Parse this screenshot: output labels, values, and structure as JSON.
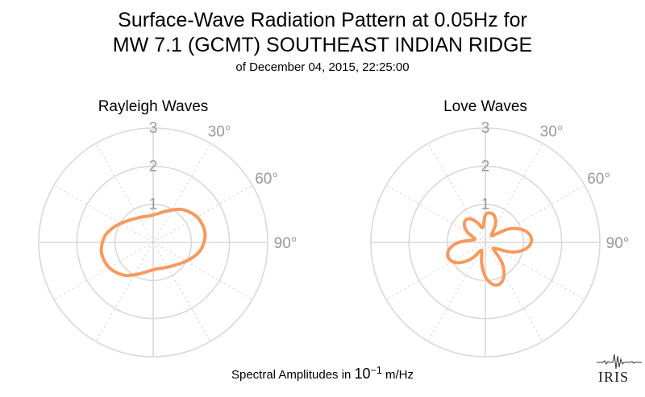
{
  "header": {
    "title_line1": "Surface-Wave Radiation Pattern at 0.05Hz for",
    "title_line2": "MW 7.1 (GCMT) SOUTHEAST INDIAN RIDGE",
    "subtitle": "of December 04, 2015, 22:25:00"
  },
  "footer": {
    "label_prefix": "Spectral Amplitudes in ",
    "label_base": "10",
    "label_exp": "−1",
    "label_suffix": " m/Hz",
    "logo_text": "IRIS"
  },
  "colors": {
    "trace": "#f79a5e",
    "grid": "#d9d9d9",
    "tick_label": "#999999"
  },
  "chart_data": [
    {
      "type": "polar-line",
      "title": "Rayleigh Waves",
      "radial_ticks": [
        "1",
        "2",
        "3"
      ],
      "rmax": 3,
      "angle_labels": [
        "30°",
        "60°",
        "90°"
      ],
      "angle_ticks_deg": [
        0,
        30,
        60,
        90,
        120,
        150,
        180,
        210,
        240,
        270,
        300,
        330
      ],
      "theta_step_deg": 10,
      "r": [
        0.72,
        0.77,
        0.86,
        0.98,
        1.13,
        1.24,
        1.33,
        1.37,
        1.38,
        1.33,
        1.25,
        1.12,
        0.99,
        0.88,
        0.8,
        0.75,
        0.72,
        0.7,
        0.72,
        0.77,
        0.86,
        0.98,
        1.13,
        1.24,
        1.33,
        1.37,
        1.38,
        1.33,
        1.25,
        1.12,
        0.99,
        0.88,
        0.8,
        0.75,
        0.72,
        0.7
      ]
    },
    {
      "type": "polar-line",
      "title": "Love Waves",
      "radial_ticks": [
        "1",
        "2",
        "3"
      ],
      "rmax": 3,
      "angle_labels": [
        "30°",
        "60°",
        "90°"
      ],
      "angle_ticks_deg": [
        0,
        30,
        60,
        90,
        120,
        150,
        180,
        210,
        240,
        270,
        300,
        330
      ],
      "theta_step_deg": 10,
      "r": [
        0.72,
        0.78,
        0.72,
        0.52,
        0.25,
        0.32,
        0.7,
        1.0,
        1.18,
        1.2,
        1.05,
        0.74,
        0.33,
        0.28,
        0.66,
        0.98,
        1.15,
        1.12,
        0.9,
        0.56,
        0.28,
        0.25,
        0.55,
        0.82,
        1.0,
        1.05,
        0.95,
        0.7,
        0.35,
        0.3,
        0.55,
        0.72,
        0.78,
        0.7,
        0.52,
        0.4
      ]
    }
  ]
}
